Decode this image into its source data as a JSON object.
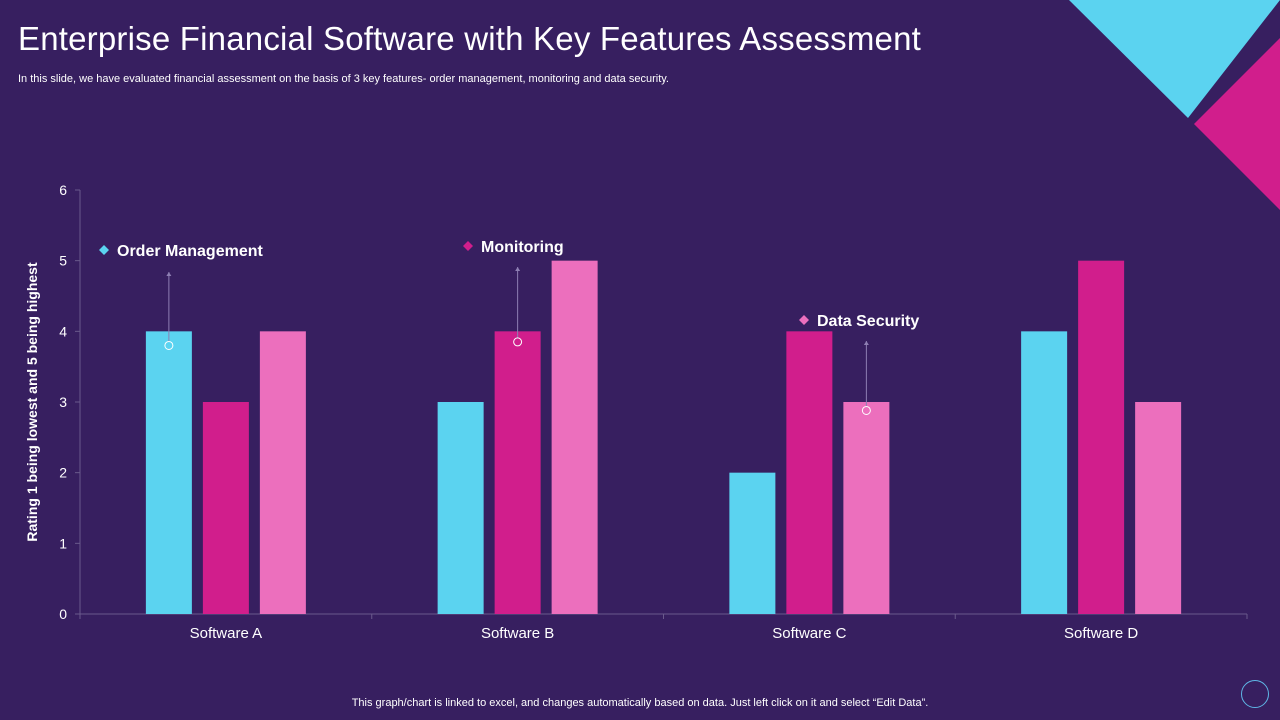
{
  "header": {
    "title": "Enterprise Financial Software with Key Features Assessment",
    "subtitle": "In this slide, we have evaluated financial assessment on the basis of 3 key features- order management, monitoring and  data security."
  },
  "footer": {
    "note": "This graph/chart is linked to excel,  and changes automatically based on data. Just left click on it and select “Edit Data”."
  },
  "colors": {
    "background": "#371f60",
    "cyan": "#5bd3f0",
    "magenta": "#d11e8c",
    "pink": "#ec6fbd",
    "axis": "#6a5a8c"
  },
  "chart_data": {
    "type": "bar",
    "categories": [
      "Software A",
      "Software B",
      "Software C",
      "Software D"
    ],
    "series": [
      {
        "name": "Order Management",
        "values": [
          4,
          3,
          2,
          4
        ]
      },
      {
        "name": "Monitoring",
        "values": [
          3,
          4,
          4,
          5
        ]
      },
      {
        "name": "Data Security",
        "values": [
          4,
          5,
          3,
          3
        ]
      }
    ],
    "ylabel": "Rating 1 being lowest and 5 being highest",
    "xlabel": "",
    "ylim": [
      0,
      6
    ],
    "yticks": [
      0,
      1,
      2,
      3,
      4,
      5,
      6
    ],
    "grid": false,
    "annotations": [
      {
        "text": "Order Management",
        "series": 0,
        "category": 0,
        "value": 3.8
      },
      {
        "text": "Monitoring",
        "series": 1,
        "category": 1,
        "value": 3.85
      },
      {
        "text": "Data Security",
        "series": 2,
        "category": 2,
        "value": 2.88
      }
    ]
  }
}
